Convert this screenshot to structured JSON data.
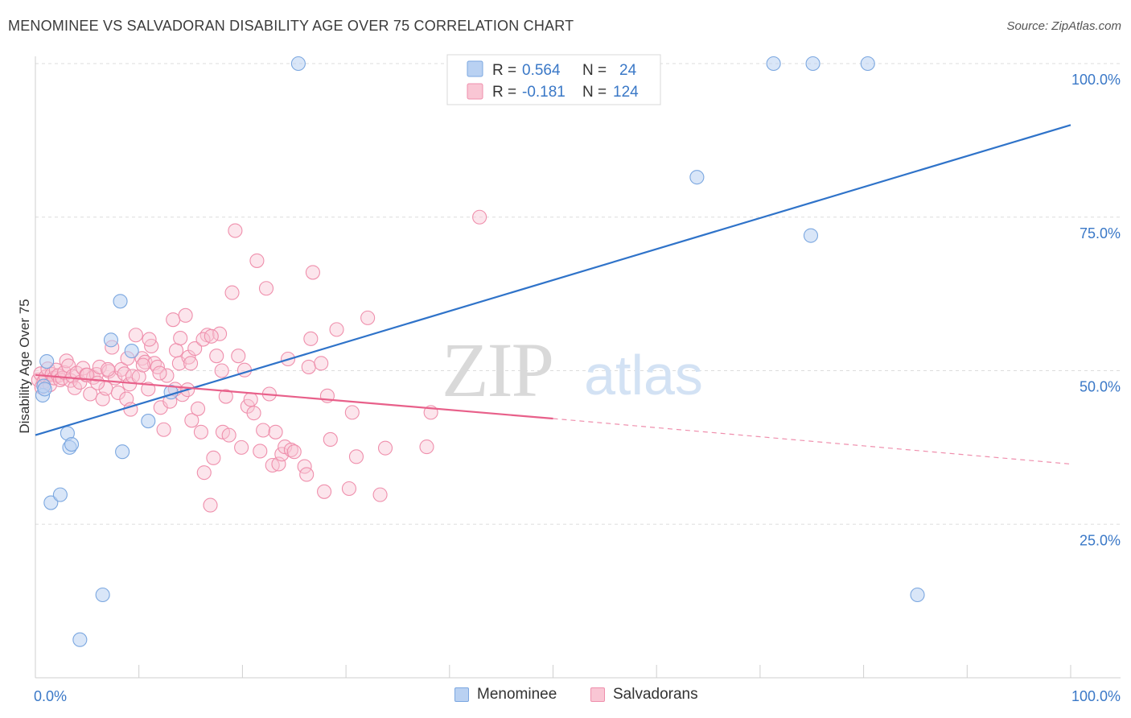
{
  "header": {
    "title": "MENOMINEE VS SALVADORAN DISABILITY AGE OVER 75 CORRELATION CHART",
    "source": "Source: ZipAtlas.com"
  },
  "watermark": {
    "zip": "ZIP",
    "atlas": "atlas"
  },
  "colors": {
    "menominee_fill": "#b9d1f2",
    "menominee_stroke": "#7ba7e0",
    "menominee_line": "#2f73c9",
    "salvadoran_fill": "#f9c6d4",
    "salvadoran_stroke": "#ef8fac",
    "salvadoran_line": "#e8608a",
    "axis_label_blue": "#3a78c7"
  },
  "legend": {
    "rows": [
      {
        "r_label": "R =",
        "r_value": "0.564",
        "n_label": "N =",
        "n_value": "24"
      },
      {
        "r_label": "R =",
        "r_value": "-0.181",
        "n_label": "N =",
        "n_value": "124"
      }
    ]
  },
  "bottom_legend": {
    "series1": "Menominee",
    "series2": "Salvadorans"
  },
  "chart_data": {
    "type": "scatter",
    "title": "MENOMINEE VS SALVADORAN DISABILITY AGE OVER 75 CORRELATION CHART",
    "xlabel": "",
    "ylabel": "Disability Age Over 75",
    "xlim": [
      0,
      100
    ],
    "ylim": [
      0,
      105
    ],
    "x_tick_labels": [
      "0.0%",
      "100.0%"
    ],
    "y_tick_values": [
      25,
      50,
      75,
      100
    ],
    "y_tick_labels": [
      "25.0%",
      "50.0%",
      "75.0%",
      "100.0%"
    ],
    "grid": "horizontal dashed",
    "legend_position": "top-center",
    "series": [
      {
        "name": "Menominee",
        "R": 0.564,
        "N": 24,
        "trend": {
          "x": [
            0,
            100
          ],
          "y": [
            39.5,
            90
          ]
        },
        "points": [
          [
            0.7,
            46.0
          ],
          [
            0.8,
            47.5
          ],
          [
            1.1,
            51.5
          ],
          [
            1.5,
            28.5
          ],
          [
            2.4,
            29.8
          ],
          [
            3.1,
            39.8
          ],
          [
            3.3,
            37.5
          ],
          [
            3.5,
            38.0
          ],
          [
            4.3,
            6.2
          ],
          [
            6.5,
            13.5
          ],
          [
            7.3,
            55.0
          ],
          [
            8.2,
            61.3
          ],
          [
            8.4,
            36.8
          ],
          [
            9.3,
            53.2
          ],
          [
            10.9,
            41.8
          ],
          [
            13.1,
            46.5
          ],
          [
            25.4,
            100.0
          ],
          [
            63.9,
            81.5
          ],
          [
            71.3,
            100.0
          ],
          [
            75.1,
            100.0
          ],
          [
            74.9,
            72.0
          ],
          [
            80.4,
            100.0
          ],
          [
            85.2,
            13.5
          ],
          [
            0.9,
            47.0
          ]
        ]
      },
      {
        "name": "Salvadorans",
        "R": -0.181,
        "N": 124,
        "trend": {
          "x": [
            0,
            50
          ],
          "y": [
            49.3,
            42.2
          ]
        },
        "trend_dashed": {
          "x": [
            50,
            100
          ],
          "y": [
            42.2,
            34.8
          ]
        },
        "points": [
          [
            0.3,
            48.5
          ],
          [
            0.5,
            49.5
          ],
          [
            0.6,
            47.3
          ],
          [
            0.8,
            48.2
          ],
          [
            1.0,
            49.0
          ],
          [
            1.2,
            50.3
          ],
          [
            1.4,
            47.7
          ],
          [
            1.6,
            49.4
          ],
          [
            1.8,
            48.8
          ],
          [
            2.0,
            50.1
          ],
          [
            2.2,
            49.2
          ],
          [
            2.4,
            48.5
          ],
          [
            2.6,
            48.8
          ],
          [
            2.8,
            49.7
          ],
          [
            3.0,
            51.6
          ],
          [
            3.2,
            50.8
          ],
          [
            3.4,
            48.4
          ],
          [
            3.6,
            49.1
          ],
          [
            3.8,
            47.2
          ],
          [
            4.0,
            49.6
          ],
          [
            4.3,
            48.1
          ],
          [
            4.6,
            50.4
          ],
          [
            4.9,
            49.3
          ],
          [
            5.3,
            46.2
          ],
          [
            5.6,
            48.9
          ],
          [
            5.9,
            49.4
          ],
          [
            6.2,
            50.6
          ],
          [
            6.5,
            45.4
          ],
          [
            6.8,
            47.1
          ],
          [
            7.1,
            49.9
          ],
          [
            7.4,
            53.8
          ],
          [
            7.7,
            48.8
          ],
          [
            8.0,
            46.4
          ],
          [
            8.3,
            50.2
          ],
          [
            8.6,
            49.5
          ],
          [
            8.8,
            45.4
          ],
          [
            9.1,
            47.8
          ],
          [
            9.4,
            49.1
          ],
          [
            9.7,
            55.8
          ],
          [
            10.0,
            49.0
          ],
          [
            10.3,
            52.0
          ],
          [
            10.6,
            51.4
          ],
          [
            10.9,
            47.0
          ],
          [
            11.2,
            54.0
          ],
          [
            11.5,
            51.2
          ],
          [
            11.8,
            50.6
          ],
          [
            12.1,
            44.0
          ],
          [
            12.4,
            40.4
          ],
          [
            12.7,
            49.2
          ],
          [
            13.0,
            45.0
          ],
          [
            13.3,
            58.3
          ],
          [
            13.6,
            53.3
          ],
          [
            13.9,
            51.2
          ],
          [
            14.2,
            46.1
          ],
          [
            14.5,
            59.0
          ],
          [
            14.8,
            52.2
          ],
          [
            15.1,
            41.9
          ],
          [
            15.4,
            53.6
          ],
          [
            15.7,
            43.8
          ],
          [
            16.0,
            40.0
          ],
          [
            16.3,
            33.4
          ],
          [
            16.6,
            55.8
          ],
          [
            16.9,
            28.1
          ],
          [
            17.2,
            35.8
          ],
          [
            17.5,
            52.4
          ],
          [
            17.8,
            56.0
          ],
          [
            18.1,
            40.0
          ],
          [
            18.4,
            45.8
          ],
          [
            18.7,
            39.5
          ],
          [
            19.0,
            62.7
          ],
          [
            19.3,
            72.8
          ],
          [
            19.6,
            52.4
          ],
          [
            19.9,
            37.5
          ],
          [
            20.2,
            50.1
          ],
          [
            20.5,
            44.2
          ],
          [
            20.8,
            45.3
          ],
          [
            21.1,
            43.1
          ],
          [
            21.4,
            67.9
          ],
          [
            21.7,
            36.9
          ],
          [
            22.0,
            40.3
          ],
          [
            22.3,
            63.4
          ],
          [
            22.6,
            46.2
          ],
          [
            22.9,
            34.6
          ],
          [
            23.2,
            40.0
          ],
          [
            23.5,
            34.8
          ],
          [
            23.8,
            36.4
          ],
          [
            24.1,
            37.6
          ],
          [
            24.4,
            51.9
          ],
          [
            24.7,
            37.1
          ],
          [
            25.0,
            36.8
          ],
          [
            26.0,
            34.4
          ],
          [
            26.2,
            33.1
          ],
          [
            26.4,
            50.6
          ],
          [
            26.6,
            55.2
          ],
          [
            26.8,
            66.0
          ],
          [
            27.6,
            51.2
          ],
          [
            27.9,
            30.3
          ],
          [
            28.2,
            45.9
          ],
          [
            28.5,
            38.8
          ],
          [
            29.1,
            56.7
          ],
          [
            30.3,
            30.8
          ],
          [
            30.6,
            43.2
          ],
          [
            31.0,
            36.0
          ],
          [
            32.1,
            58.6
          ],
          [
            33.3,
            29.8
          ],
          [
            33.8,
            37.4
          ],
          [
            37.8,
            37.6
          ],
          [
            38.2,
            43.2
          ],
          [
            42.9,
            75.0
          ],
          [
            5.0,
            49.3
          ],
          [
            6.0,
            48.0
          ],
          [
            7.0,
            50.2
          ],
          [
            8.9,
            52.0
          ],
          [
            11.0,
            55.1
          ],
          [
            12.0,
            49.6
          ],
          [
            14.0,
            55.3
          ],
          [
            15.0,
            51.2
          ],
          [
            16.2,
            55.1
          ],
          [
            17.0,
            55.6
          ],
          [
            18.0,
            50.0
          ],
          [
            9.2,
            43.7
          ],
          [
            10.4,
            50.9
          ],
          [
            13.5,
            47.0
          ],
          [
            14.7,
            46.9
          ]
        ]
      }
    ]
  }
}
